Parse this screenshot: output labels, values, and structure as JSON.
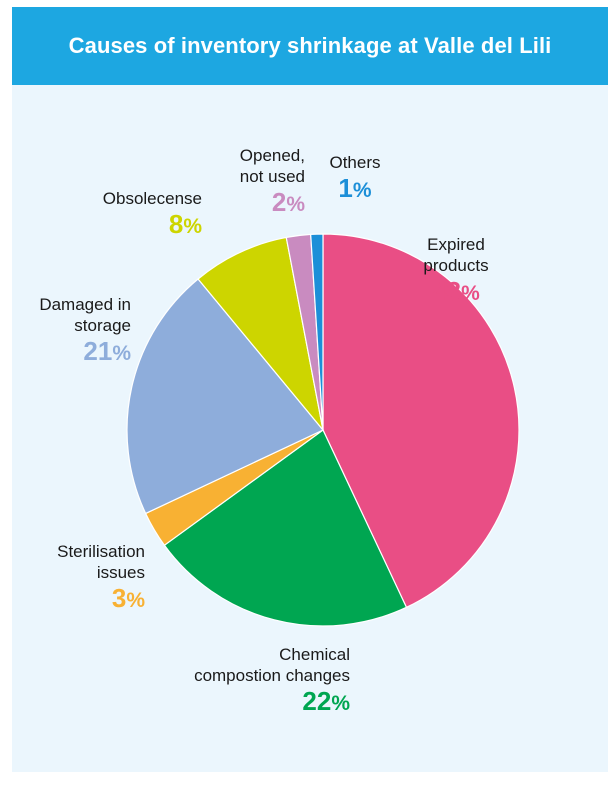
{
  "header": {
    "title": "Causes of inventory shrinkage at Valle del Lili"
  },
  "colors": {
    "header_bg": "#1da7e1",
    "panel_bg": "#ebf6fd"
  },
  "chart_data": {
    "type": "pie",
    "title": "Causes of inventory shrinkage at Valle del Lili",
    "start_angle_deg": 0,
    "direction": "clockwise",
    "slices": [
      {
        "label": "Expired products",
        "label_lines": [
          "Expired",
          "products"
        ],
        "value": 43,
        "display": "43",
        "color": "#e94e85"
      },
      {
        "label": "Chemical compostion changes",
        "label_lines": [
          "Chemical",
          "compostion changes"
        ],
        "value": 22,
        "display": "22",
        "color": "#00a651"
      },
      {
        "label": "Sterilisation issues",
        "label_lines": [
          "Sterilisation",
          "issues"
        ],
        "value": 3,
        "display": "3",
        "color": "#f8b133"
      },
      {
        "label": "Damaged in storage",
        "label_lines": [
          "Damaged in",
          "storage"
        ],
        "value": 21,
        "display": "21",
        "color": "#8eaddb"
      },
      {
        "label": "Obsolecense",
        "label_lines": [
          "Obsolecense"
        ],
        "value": 8,
        "display": "8",
        "color": "#cdd500"
      },
      {
        "label": "Opened, not used",
        "label_lines": [
          "Opened,",
          "not used"
        ],
        "value": 2,
        "display": "2",
        "color": "#c98bc0"
      },
      {
        "label": "Others",
        "label_lines": [
          "Others"
        ],
        "value": 1,
        "display": "1",
        "color": "#1c8fd8"
      }
    ],
    "percent_sign": "%"
  }
}
